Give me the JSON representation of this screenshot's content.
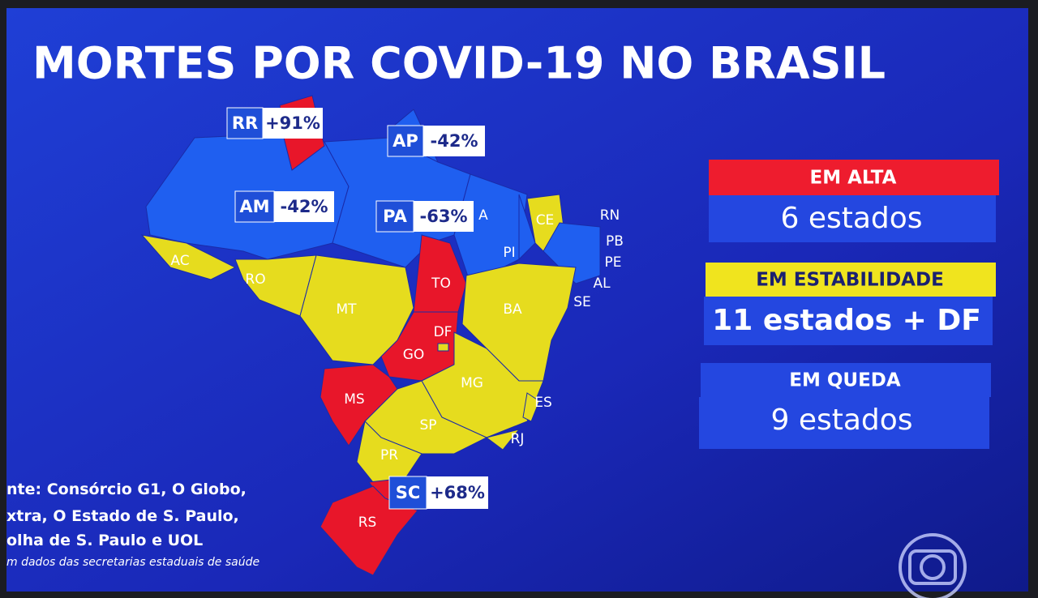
{
  "title": "MORTES POR COVID-19 NO BRASIL",
  "callouts": [
    {
      "state": "RR",
      "change": "+91%"
    },
    {
      "state": "AP",
      "change": "-42%"
    },
    {
      "state": "AM",
      "change": "-42%"
    },
    {
      "state": "PA",
      "change": "-63%"
    },
    {
      "state": "SC",
      "change": "+68%"
    }
  ],
  "state_labels": [
    "AC",
    "RO",
    "MT",
    "TO",
    "DF",
    "GO",
    "MS",
    "MG",
    "SP",
    "PR",
    "RS",
    "BA",
    "PI",
    "CE",
    "A",
    "RN",
    "PB",
    "PE",
    "AL",
    "SE",
    "ES",
    "RJ"
  ],
  "summary": [
    {
      "label": "EM ALTA",
      "count": "6 estados"
    },
    {
      "label": "EM ESTABILIDADE",
      "count": "11 estados + DF"
    },
    {
      "label": "EM QUEDA",
      "count": "9 estados"
    }
  ],
  "source": [
    "nte: Consórcio G1, O Globo,",
    "xtra, O Estado de S. Paulo,",
    "olha de S. Paulo e UOL",
    "m dados das secretarias estaduais de saúde"
  ]
}
